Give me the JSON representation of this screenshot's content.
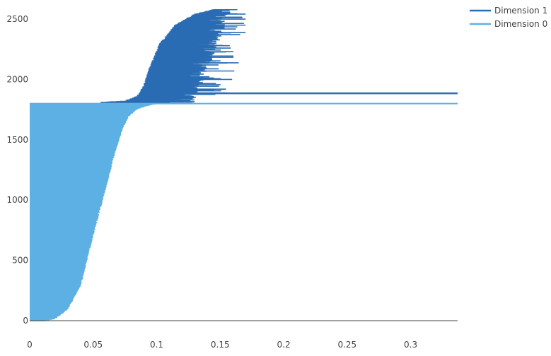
{
  "chart_data": {
    "type": "barcode",
    "title": "",
    "xlabel": "",
    "ylabel": "",
    "xlim": [
      0,
      0.337
    ],
    "ylim": [
      0,
      2600
    ],
    "grid": false,
    "legend_position": "top-right",
    "x_ticks": [
      "0",
      "0.05",
      "0.1",
      "0.15",
      "0.2",
      "0.25",
      "0.3"
    ],
    "x_tick_values": [
      0,
      0.05,
      0.1,
      0.15,
      0.2,
      0.25,
      0.3
    ],
    "y_ticks": [
      "0",
      "500",
      "1000",
      "1500",
      "2000",
      "2500"
    ],
    "y_tick_values": [
      0,
      500,
      1000,
      1500,
      2000,
      2500
    ],
    "series": [
      {
        "name": "Dimension 1",
        "color": "#2b6db4",
        "index_range": [
          1810,
          2580
        ],
        "births_profile": [
          [
            1810,
            0.056
          ],
          [
            1820,
            0.075
          ],
          [
            1860,
            0.085
          ],
          [
            1940,
            0.09
          ],
          [
            2100,
            0.095
          ],
          [
            2300,
            0.103
          ],
          [
            2450,
            0.115
          ],
          [
            2540,
            0.13
          ],
          [
            2580,
            0.145
          ]
        ],
        "deaths_range": [
          0.11,
          0.17
        ],
        "infinite_bar": {
          "index": 1885,
          "birth": 0.098
        }
      },
      {
        "name": "Dimension 0",
        "color": "#5cb1e4",
        "index_range": [
          0,
          1800
        ],
        "births": 0,
        "deaths_profile": [
          [
            0,
            0.013
          ],
          [
            20,
            0.02
          ],
          [
            100,
            0.03
          ],
          [
            300,
            0.04
          ],
          [
            600,
            0.047
          ],
          [
            1000,
            0.057
          ],
          [
            1400,
            0.067
          ],
          [
            1600,
            0.073
          ],
          [
            1700,
            0.078
          ],
          [
            1760,
            0.085
          ],
          [
            1790,
            0.095
          ],
          [
            1800,
            0.1
          ]
        ],
        "infinite_bar": {
          "index": 1800,
          "birth": 0
        }
      }
    ]
  }
}
